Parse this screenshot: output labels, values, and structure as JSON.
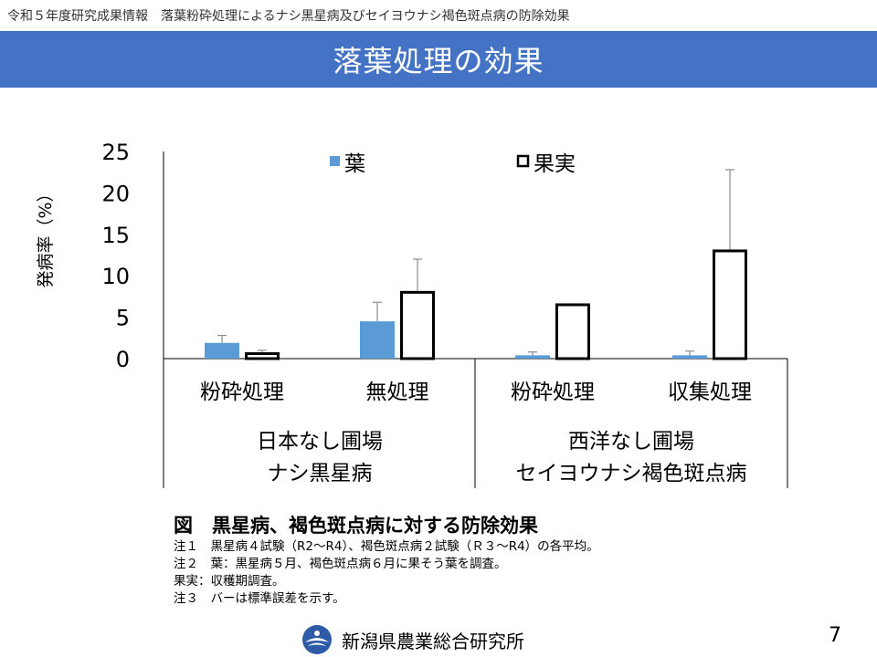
{
  "header": {
    "info": "令和５年度研究成果情報　落葉粉砕処理によるナシ黒星病及びセイヨウナシ褐色斑点病の防除効果",
    "title": "落葉処理の効果"
  },
  "colors": {
    "banner": "#4472c4",
    "leaf_bar": "#5b9bd5",
    "fruit_bar": "#ffffff",
    "fruit_border": "#000000",
    "error_bar": "#8c8c8c"
  },
  "chart_data": {
    "type": "bar",
    "ylabel": "発病率（%）",
    "ylim": [
      0,
      25
    ],
    "yticks": [
      "0",
      "5",
      "10",
      "15",
      "20",
      "25"
    ],
    "categories": [
      "粉砕処理",
      "無処理",
      "粉砕処理",
      "収集処理"
    ],
    "groups": [
      {
        "line1": "日本なし圃場",
        "line2": "ナシ黒星病"
      },
      {
        "line1": "西洋なし圃場",
        "line2": "セイヨウナシ褐色斑点病"
      }
    ],
    "series": [
      {
        "name": "葉",
        "values": [
          1.9,
          4.5,
          0.4,
          0.4
        ],
        "errors": [
          0.9,
          2.3,
          0.4,
          0.5
        ]
      },
      {
        "name": "果実",
        "values": [
          0.6,
          8.0,
          6.5,
          13.0
        ],
        "errors": [
          0.4,
          4.0,
          0.1,
          9.8
        ]
      }
    ],
    "legend_position": "top",
    "grid": false
  },
  "caption": "図　黒星病、褐色斑点病に対する防除効果",
  "notes": [
    "注１　黒星病４試験（R2～R4）、褐色斑点病２試験（Ｒ３～R4）の各平均。",
    "注２　葉：黒星病５月、褐色斑点病６月に果そう葉を調査。",
    "果実：収穫期調査。",
    "注３　バーは標準誤差を示す。"
  ],
  "footer": {
    "org_name": "新潟県農業総合研究所",
    "page_number": "7",
    "logo_icon": "prefecture-emblem-icon"
  }
}
